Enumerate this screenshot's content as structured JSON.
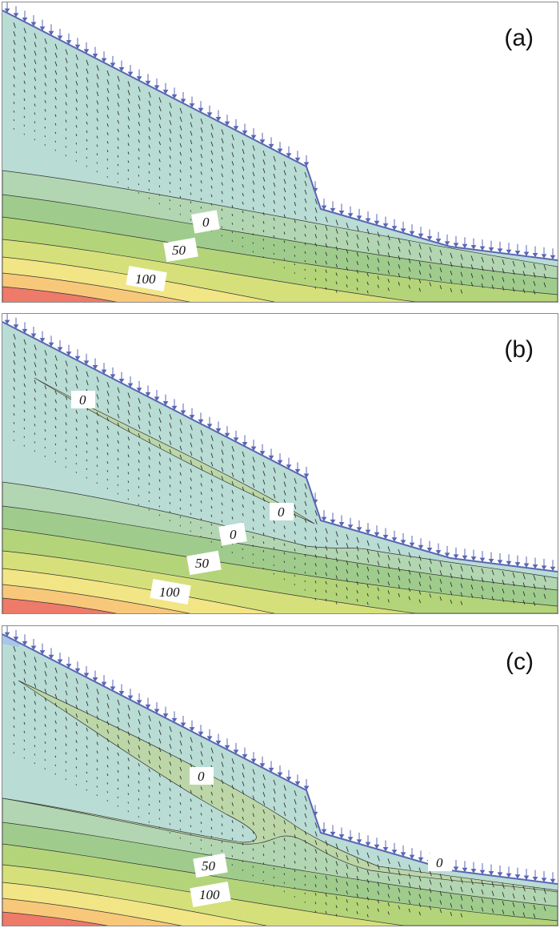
{
  "panels": [
    {
      "id": "a",
      "label": "(a)",
      "contour_labels": [
        "0",
        "50",
        "100"
      ]
    },
    {
      "id": "b",
      "label": "(b)",
      "contour_labels": [
        "0",
        "0",
        "0",
        "50",
        "100"
      ]
    },
    {
      "id": "c",
      "label": "(c)",
      "contour_labels": [
        "0",
        "50",
        "100",
        "0"
      ]
    }
  ],
  "colors": {
    "surface": "#b9dcd5",
    "band1": "#b3d6b2",
    "band2": "#9fcc8c",
    "band3": "#b4d47a",
    "band4": "#d6e07a",
    "band5": "#f2e585",
    "band6": "#f8c87a",
    "band7": "#f4a070",
    "band8": "#ee7a6a",
    "rain_arrow": "#5a66b4",
    "seepage_band": "#bcd6a8"
  }
}
